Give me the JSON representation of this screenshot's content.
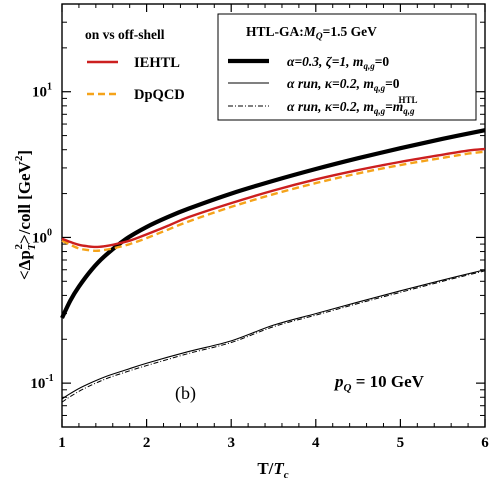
{
  "chart_data": {
    "type": "line",
    "xlabel_main": "T/",
    "xlabel_var": "T",
    "xlabel_sub": "c",
    "ylabel_parts": {
      "open": "<Δp",
      "sub": "T",
      "sup": "2",
      "mid": ">/coll [GeV",
      "sup2": "2",
      "close": "]"
    },
    "xlim": [
      1,
      6
    ],
    "ylim": [
      0.05,
      40
    ],
    "yscale": "log",
    "xticks": [
      "1",
      "2",
      "3",
      "4",
      "5",
      "6"
    ],
    "yticks": [
      {
        "base": "10",
        "exp": "-1",
        "value": 0.1
      },
      {
        "base": "10",
        "exp": "0",
        "value": 1
      },
      {
        "base": "10",
        "exp": "1",
        "value": 10
      }
    ],
    "legend_left": {
      "title": "on vs off-shell",
      "entries": [
        "IEHTL",
        "DpQCD"
      ],
      "position": "top-left"
    },
    "legend_right": {
      "title_pre": "HTL-GA:",
      "title_var": "M",
      "title_sub": "Q",
      "title_post": "=1.5 GeV",
      "entries": [
        "α=0.3, ζ=1, m",
        "α run, κ=0.2, m",
        "α run, κ=0.2, m"
      ],
      "entry_subs": [
        "q,g",
        "q,g",
        "q,g"
      ],
      "entry_tails": [
        "=0",
        "=0",
        "=m"
      ],
      "entry3_sub_extra": "q,g",
      "entry3_sup_extra": "HTL",
      "position": "top-right"
    },
    "annotation_b": "(b)",
    "annotation_pq": {
      "var": "p",
      "sub": "Q",
      "rest": " = 10 GeV"
    },
    "series": [
      {
        "name": "IEHTL",
        "color": "#cc1f1f",
        "dash": "solid",
        "x": [
          1.0,
          1.1,
          1.2,
          1.3,
          1.4,
          1.5,
          1.6,
          1.8,
          2.0,
          2.25,
          2.5,
          3.0,
          3.5,
          4.0,
          4.5,
          5.0,
          5.5,
          5.8,
          6.0
        ],
        "y": [
          0.98,
          0.93,
          0.89,
          0.87,
          0.86,
          0.87,
          0.89,
          0.95,
          1.05,
          1.2,
          1.38,
          1.72,
          2.1,
          2.5,
          2.9,
          3.3,
          3.7,
          3.95,
          4.05
        ]
      },
      {
        "name": "DpQCD",
        "color": "#f5a31a",
        "dash": "dashed",
        "x": [
          1.0,
          1.1,
          1.2,
          1.3,
          1.4,
          1.5,
          1.6,
          1.8,
          2.0,
          2.25,
          2.5,
          3.0,
          3.5,
          4.0,
          4.5,
          5.0,
          5.5,
          5.8,
          6.0
        ],
        "y": [
          0.95,
          0.89,
          0.84,
          0.82,
          0.81,
          0.82,
          0.84,
          0.9,
          0.99,
          1.13,
          1.29,
          1.62,
          1.98,
          2.36,
          2.75,
          3.14,
          3.52,
          3.76,
          3.88
        ]
      },
      {
        "name": "α=0.3, ζ=1, m_q,g=0",
        "color": "#000000",
        "dash": "thick",
        "x": [
          1.0,
          1.1,
          1.2,
          1.35,
          1.5,
          1.75,
          2.0,
          2.25,
          2.5,
          3.0,
          3.5,
          4.0,
          4.5,
          5.0,
          5.5,
          6.0
        ],
        "y": [
          0.28,
          0.37,
          0.46,
          0.6,
          0.74,
          0.97,
          1.18,
          1.38,
          1.58,
          2.0,
          2.45,
          2.95,
          3.5,
          4.1,
          4.75,
          5.45
        ]
      },
      {
        "name": "α run, κ=0.2, m_q,g=0",
        "color": "#000000",
        "dash": "thin",
        "x": [
          1.0,
          1.1,
          1.25,
          1.5,
          1.75,
          2.0,
          2.5,
          3.0,
          3.5,
          4.0,
          4.5,
          5.0,
          5.5,
          6.0
        ],
        "y": [
          0.078,
          0.085,
          0.095,
          0.11,
          0.123,
          0.137,
          0.165,
          0.195,
          0.25,
          0.3,
          0.36,
          0.43,
          0.51,
          0.6
        ]
      },
      {
        "name": "α run, κ=0.2, m_q,g=m_q,g^HTL",
        "color": "#000000",
        "dash": "dashdot",
        "x": [
          1.0,
          1.1,
          1.25,
          1.5,
          1.75,
          2.0,
          2.5,
          3.0,
          3.5,
          4.0,
          4.5,
          5.0,
          5.5,
          6.0
        ],
        "y": [
          0.074,
          0.081,
          0.091,
          0.106,
          0.119,
          0.132,
          0.16,
          0.19,
          0.244,
          0.293,
          0.352,
          0.42,
          0.5,
          0.59
        ]
      }
    ],
    "grid": false
  }
}
